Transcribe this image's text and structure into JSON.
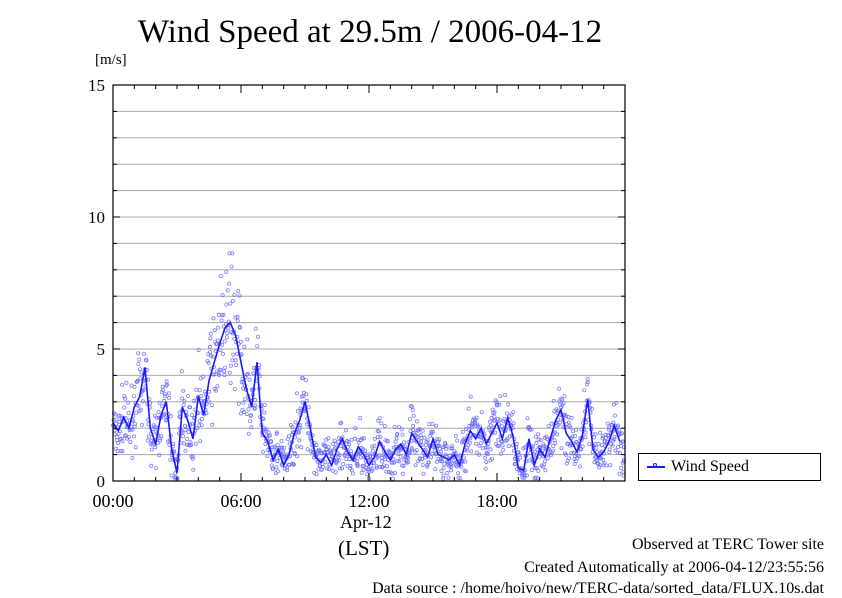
{
  "chart_data": {
    "type": "scatter",
    "title": "Wind Speed at 29.5m / 2006-04-12",
    "ylabel": "[m/s]",
    "xlabel": "(LST)",
    "date_label": "Apr-12",
    "ylim": [
      0,
      15
    ],
    "yticks": [
      "0",
      "5",
      "10",
      "15"
    ],
    "xlim_hours": [
      0,
      24
    ],
    "xticks": [
      "00:00",
      "06:00",
      "12:00",
      "18:00"
    ],
    "grid": true,
    "legend_position": "right",
    "colors": {
      "line": "#1a1aff",
      "points": "#6a6aff"
    },
    "series": [
      {
        "name": "Wind Speed",
        "x_hours": [
          0.0,
          0.25,
          0.5,
          0.75,
          1.0,
          1.25,
          1.5,
          1.75,
          2.0,
          2.25,
          2.5,
          2.75,
          3.0,
          3.25,
          3.5,
          3.75,
          4.0,
          4.25,
          4.5,
          4.75,
          5.0,
          5.25,
          5.5,
          5.75,
          6.0,
          6.25,
          6.5,
          6.75,
          7.0,
          7.25,
          7.5,
          7.75,
          8.0,
          8.25,
          8.5,
          8.75,
          9.0,
          9.25,
          9.5,
          9.75,
          10.0,
          10.25,
          10.5,
          10.75,
          11.0,
          11.25,
          11.5,
          11.75,
          12.0,
          12.25,
          12.5,
          12.75,
          13.0,
          13.25,
          13.5,
          13.75,
          14.0,
          14.25,
          14.5,
          14.75,
          15.0,
          15.25,
          15.5,
          15.75,
          16.0,
          16.25,
          16.5,
          16.75,
          17.0,
          17.25,
          17.5,
          17.75,
          18.0,
          18.25,
          18.5,
          18.75,
          19.0,
          19.25,
          19.5,
          19.75,
          20.0,
          20.25,
          20.5,
          20.75,
          21.0,
          21.25,
          21.5,
          21.75,
          22.0,
          22.25,
          22.5,
          22.75,
          23.0,
          23.25,
          23.5,
          23.75
        ],
        "values": [
          2.2,
          1.9,
          2.4,
          2.0,
          2.8,
          3.2,
          4.3,
          2.0,
          1.4,
          2.5,
          3.0,
          1.2,
          0.3,
          2.8,
          2.3,
          1.6,
          3.2,
          2.5,
          3.8,
          4.5,
          5.2,
          5.8,
          6.0,
          5.5,
          4.5,
          3.5,
          2.8,
          4.5,
          1.8,
          1.5,
          0.8,
          1.2,
          0.6,
          1.0,
          1.8,
          2.3,
          3.0,
          2.0,
          0.9,
          0.7,
          1.0,
          0.6,
          1.2,
          1.6,
          1.1,
          0.8,
          1.3,
          1.0,
          0.6,
          0.9,
          1.5,
          1.1,
          0.8,
          1.2,
          1.4,
          1.0,
          1.8,
          1.5,
          1.2,
          0.9,
          1.6,
          1.0,
          0.9,
          0.8,
          1.0,
          0.6,
          1.4,
          1.9,
          1.6,
          2.0,
          1.4,
          1.8,
          2.2,
          1.6,
          2.4,
          1.7,
          0.5,
          0.4,
          1.6,
          0.6,
          1.2,
          0.9,
          1.6,
          2.3,
          2.7,
          1.8,
          1.5,
          1.1,
          1.7,
          3.1,
          1.2,
          0.9,
          1.1,
          1.5,
          2.1,
          1.5
        ]
      }
    ]
  },
  "footer": {
    "line1": "Observed at TERC Tower site",
    "line2": "Created Automatically at 2006-04-12/23:55:56",
    "line3": "Data source : /home/hoivo/new/TERC-data/sorted_data/FLUX.10s.dat"
  }
}
